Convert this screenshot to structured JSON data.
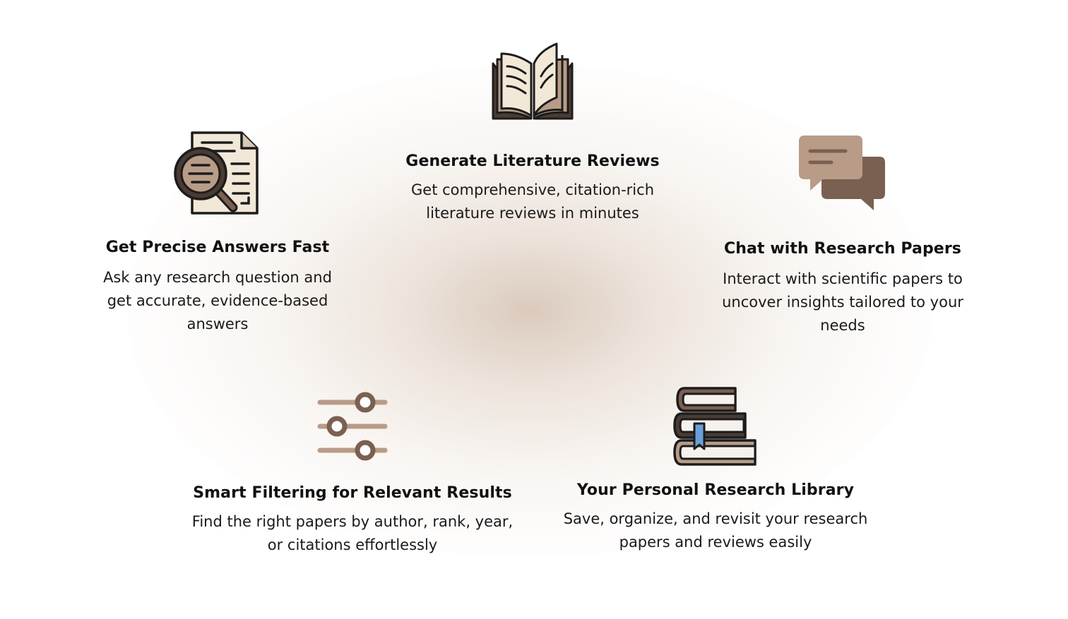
{
  "features": {
    "literature": {
      "icon": "open-book-icon",
      "title": "Generate Literature Reviews",
      "description": "Get comprehensive, citation-rich literature reviews in minutes"
    },
    "answers": {
      "icon": "document-magnifier-icon",
      "title": "Get Precise Answers Fast",
      "description": "Ask any research question and get accurate, evidence-based answers"
    },
    "chat": {
      "icon": "chat-bubbles-icon",
      "title": "Chat with Research Papers",
      "description": "Interact with scientific papers to uncover insights tailored to your needs"
    },
    "filter": {
      "icon": "sliders-icon",
      "title": "Smart Filtering for Relevant Results",
      "description": "Find the right papers by author, rank, year, or citations effortlessly"
    },
    "library": {
      "icon": "book-stack-icon",
      "title": "Your Personal Research Library",
      "description": "Save, organize, and revisit your research papers and reviews easily"
    }
  },
  "colors": {
    "dark_brown": "#4a3b33",
    "mid_brown": "#7a6050",
    "light_brown": "#b89c88",
    "paper": "#f2e8d8",
    "outline": "#1c1c1c",
    "bookmark_blue": "#6aa0d8",
    "glow": "#d4bfae"
  }
}
